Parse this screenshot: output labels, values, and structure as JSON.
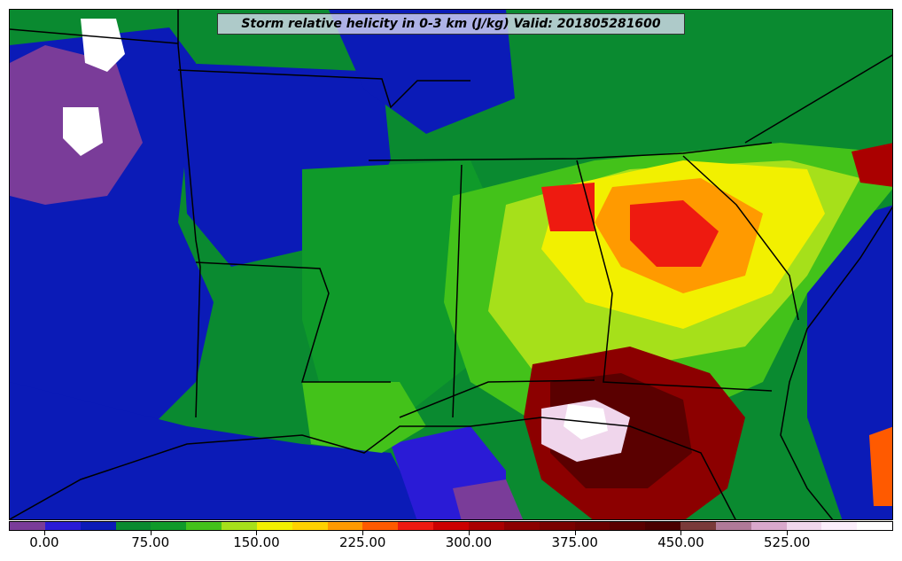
{
  "title": "Storm relative helicity in 0-3 km (J/kg) Valid: 201805281600",
  "colorbar": {
    "colors": [
      "#7a3c99",
      "#2a1bd6",
      "#0b1bb7",
      "#0a8a30",
      "#0f9a2a",
      "#43c21a",
      "#a6e01a",
      "#f2f000",
      "#ffd200",
      "#ff9a00",
      "#ff5a00",
      "#ee1a10",
      "#cc0000",
      "#aa0000",
      "#8c0000",
      "#7a0000",
      "#6a0000",
      "#5a0000",
      "#4a0000",
      "#7a3a3a",
      "#b07a98",
      "#d9a8cc",
      "#f0d6ec",
      "#fbeefb",
      "#ffffff"
    ],
    "tick_labels": [
      "0.00",
      "75.00",
      "150.00",
      "225.00",
      "300.00",
      "375.00",
      "450.00",
      "525.00"
    ],
    "tick_positions_fraction": [
      0.0795,
      0.2,
      0.32,
      0.44,
      0.56,
      0.68,
      0.8,
      0.92
    ]
  },
  "legend_values": {
    "min": -25,
    "max": 600,
    "step": 25
  }
}
